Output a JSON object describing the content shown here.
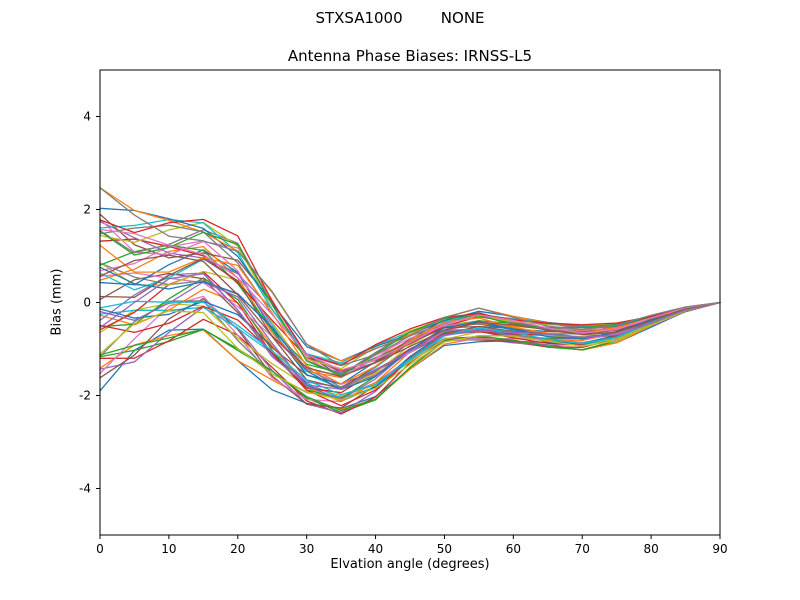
{
  "figure": {
    "suptitle": "STXSA1000        NONE",
    "title": "Antenna Phase Biases: IRNSS-L5",
    "xlabel": "Elvation angle (degrees)",
    "ylabel": "Bias (mm)"
  },
  "chart_data": {
    "type": "line",
    "title": "Antenna Phase Biases: IRNSS-L5",
    "suptitle": "STXSA1000        NONE",
    "xlabel": "Elvation angle (degrees)",
    "ylabel": "Bias (mm)",
    "xlim": [
      0,
      90
    ],
    "ylim": [
      -5,
      5
    ],
    "xticks": [
      0,
      10,
      20,
      30,
      40,
      50,
      60,
      70,
      80,
      90
    ],
    "yticks": [
      -4,
      -2,
      0,
      2,
      4
    ],
    "grid": false,
    "legend": "none",
    "n_series": 48,
    "x": [
      0,
      5,
      10,
      15,
      20,
      25,
      30,
      35,
      40,
      45,
      50,
      55,
      60,
      65,
      70,
      75,
      80,
      85,
      90
    ],
    "mean": [
      0.2,
      0.25,
      0.45,
      0.6,
      0.1,
      -0.8,
      -1.6,
      -1.85,
      -1.5,
      -1.0,
      -0.6,
      -0.5,
      -0.6,
      -0.7,
      -0.75,
      -0.65,
      -0.4,
      -0.15,
      0.0
    ],
    "spread": [
      2.1,
      1.6,
      1.25,
      1.1,
      1.25,
      1.0,
      0.65,
      0.55,
      0.55,
      0.4,
      0.3,
      0.35,
      0.28,
      0.25,
      0.25,
      0.2,
      0.12,
      0.05,
      0.0
    ],
    "series_offsets": [
      -1.0,
      -0.93,
      -0.87,
      -0.8,
      -0.74,
      -0.68,
      -0.61,
      -0.55,
      -0.48,
      -0.42,
      -0.36,
      -0.29,
      -0.23,
      -0.16,
      -0.1,
      -0.04,
      0.03,
      0.09,
      0.16,
      0.22,
      0.28,
      0.35,
      0.41,
      0.48,
      0.54,
      0.6,
      0.67,
      0.73,
      0.8,
      0.86,
      0.92,
      1.0,
      -0.85,
      -0.5,
      -0.2,
      0.12,
      0.45,
      0.75,
      -0.65,
      -0.33,
      0.05,
      0.38,
      0.7,
      0.95,
      -0.15,
      0.25,
      0.55,
      0.88
    ],
    "jitter": {
      "amp": 0.22,
      "xfreq": 1.15,
      "sfreq": 0.83,
      "clamp": 1.08
    },
    "palette": [
      "#1f77b4",
      "#ff7f0e",
      "#2ca02c",
      "#d62728",
      "#9467bd",
      "#8c564b",
      "#e377c2",
      "#7f7f7f",
      "#bcbd22",
      "#17becf"
    ],
    "line_width": 1.3,
    "axis_color": "#000000",
    "background_color": "#ffffff"
  }
}
